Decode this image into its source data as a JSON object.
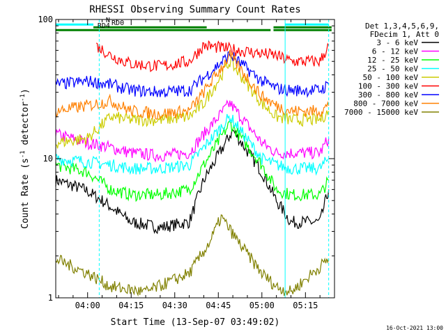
{
  "chart_data": {
    "type": "line",
    "title": "RHESSI Observing Summary Count Rates",
    "xlabel": "Start Time (13-Sep-07 03:49:02)",
    "ylabel_main": "Count Rate (s",
    "ylabel_sup": "-1",
    "ylabel_tail": " detector",
    "ylabel_end": ")",
    "yscale": "log",
    "ylim": [
      1,
      100
    ],
    "xlim": [
      "03:49:02",
      "05:25:00"
    ],
    "x_ticks": [
      "04:00",
      "04:15",
      "04:30",
      "04:45",
      "05:00",
      "05:15"
    ],
    "y_ticks": [
      "1",
      "10",
      "100"
    ],
    "legend_header": [
      "Det 1,3,4,5,6,9,",
      "FDecim 1, Att 0"
    ],
    "series": [
      {
        "name": "3 - 6 keV",
        "color": "#000000",
        "x": [
          "03:49",
          "03:59",
          "04:05",
          "04:15",
          "04:25",
          "04:35",
          "04:40",
          "04:50",
          "05:00",
          "05:05",
          "05:10",
          "05:20",
          "05:23"
        ],
        "values": [
          7,
          6,
          5,
          3.5,
          3.2,
          3.5,
          7,
          16,
          8,
          5,
          3.5,
          3.5,
          6
        ]
      },
      {
        "name": "6 - 12 keV",
        "color": "#ff00ff",
        "x": [
          "03:49",
          "04:00",
          "04:08",
          "04:15",
          "04:25",
          "04:35",
          "04:40",
          "04:49",
          "05:00",
          "05:05",
          "05:10",
          "05:20",
          "05:23"
        ],
        "values": [
          15,
          13,
          12,
          11,
          10.5,
          11,
          15,
          25,
          13,
          11,
          11,
          11,
          14
        ]
      },
      {
        "name": "12 - 25 keV",
        "color": "#00ff00",
        "x": [
          "03:49",
          "04:00",
          "04:08",
          "04:15",
          "04:25",
          "04:35",
          "04:40",
          "04:49",
          "05:00",
          "05:05",
          "05:10",
          "05:20",
          "05:23"
        ],
        "values": [
          9,
          8,
          6,
          5.5,
          5.5,
          6,
          9,
          18,
          9,
          6,
          5.5,
          5.5,
          7
        ]
      },
      {
        "name": "25 - 50 keV",
        "color": "#00ffff",
        "x": [
          "03:49",
          "04:00",
          "04:08",
          "04:15",
          "04:25",
          "04:35",
          "04:40",
          "04:49",
          "05:00",
          "05:05",
          "05:10",
          "05:20",
          "05:23"
        ],
        "values": [
          10,
          9.5,
          9,
          8.5,
          8.5,
          9,
          12,
          20,
          10,
          9,
          8.5,
          8.5,
          10
        ]
      },
      {
        "name": "50 - 100 keV",
        "color": "#cccc00",
        "x": [
          "03:49",
          "04:00",
          "04:08",
          "04:15",
          "04:25",
          "04:35",
          "04:40",
          "04:49",
          "05:00",
          "05:05",
          "05:10",
          "05:20",
          "05:23"
        ],
        "values": [
          13,
          14,
          20,
          19,
          19,
          20,
          25,
          50,
          25,
          20,
          19,
          19,
          22
        ]
      },
      {
        "name": "100 - 300 keV",
        "color": "#ff0000",
        "x": [
          "04:03",
          "04:08",
          "04:15",
          "04:25",
          "04:35",
          "04:40",
          "05:05",
          "05:10",
          "05:20",
          "05:23"
        ],
        "values": [
          65,
          55,
          48,
          46,
          50,
          65,
          55,
          50,
          50,
          65
        ]
      },
      {
        "name": "300 - 800 keV",
        "color": "#0000ff",
        "x": [
          "03:49",
          "04:00",
          "04:08",
          "04:15",
          "04:25",
          "04:35",
          "04:40",
          "04:49",
          "05:00",
          "05:05",
          "05:10",
          "05:20",
          "05:23"
        ],
        "values": [
          34,
          36,
          34,
          31,
          30,
          31,
          38,
          56,
          36,
          32,
          31,
          31,
          34
        ]
      },
      {
        "name": "800 - 7000 keV",
        "color": "#ff8000",
        "x": [
          "03:49",
          "04:00",
          "04:08",
          "04:15",
          "04:25",
          "04:35",
          "04:40",
          "04:49",
          "05:00",
          "05:05",
          "05:10",
          "05:20",
          "05:23"
        ],
        "values": [
          22,
          24,
          26,
          22,
          21,
          22,
          30,
          55,
          28,
          24,
          22,
          22,
          24
        ]
      },
      {
        "name": "7000 - 15000 keV",
        "color": "#808000",
        "x": [
          "03:49",
          "04:00",
          "04:08",
          "04:20",
          "04:35",
          "04:42",
          "04:46",
          "04:52",
          "05:00",
          "05:05",
          "05:10",
          "05:23"
        ],
        "values": [
          1.9,
          1.5,
          1.2,
          1.1,
          1.5,
          2.5,
          3.8,
          2.5,
          1.5,
          1.2,
          1.1,
          1.9
        ]
      }
    ],
    "bars": [
      {
        "label": "N",
        "color": "#00ffff",
        "y": 92,
        "segments": [
          [
            "03:49",
            "04:02"
          ],
          [
            "05:08",
            "05:23"
          ]
        ]
      },
      {
        "label": "RD0",
        "color": "#008000",
        "y": 82,
        "segments": [
          [
            "04:02",
            "04:41"
          ],
          [
            "05:04",
            "05:24"
          ]
        ]
      },
      {
        "label": "RD4",
        "color": "#008000",
        "y": 72,
        "segments": [
          [
            "03:49",
            "05:03"
          ],
          [
            "05:04",
            "05:24"
          ]
        ]
      }
    ],
    "vlines_solid": [
      "03:49:02",
      "05:08"
    ],
    "vlines_dashed": [
      "04:04",
      "05:23"
    ],
    "footer_date": "16-Oct-2021 13:00"
  }
}
